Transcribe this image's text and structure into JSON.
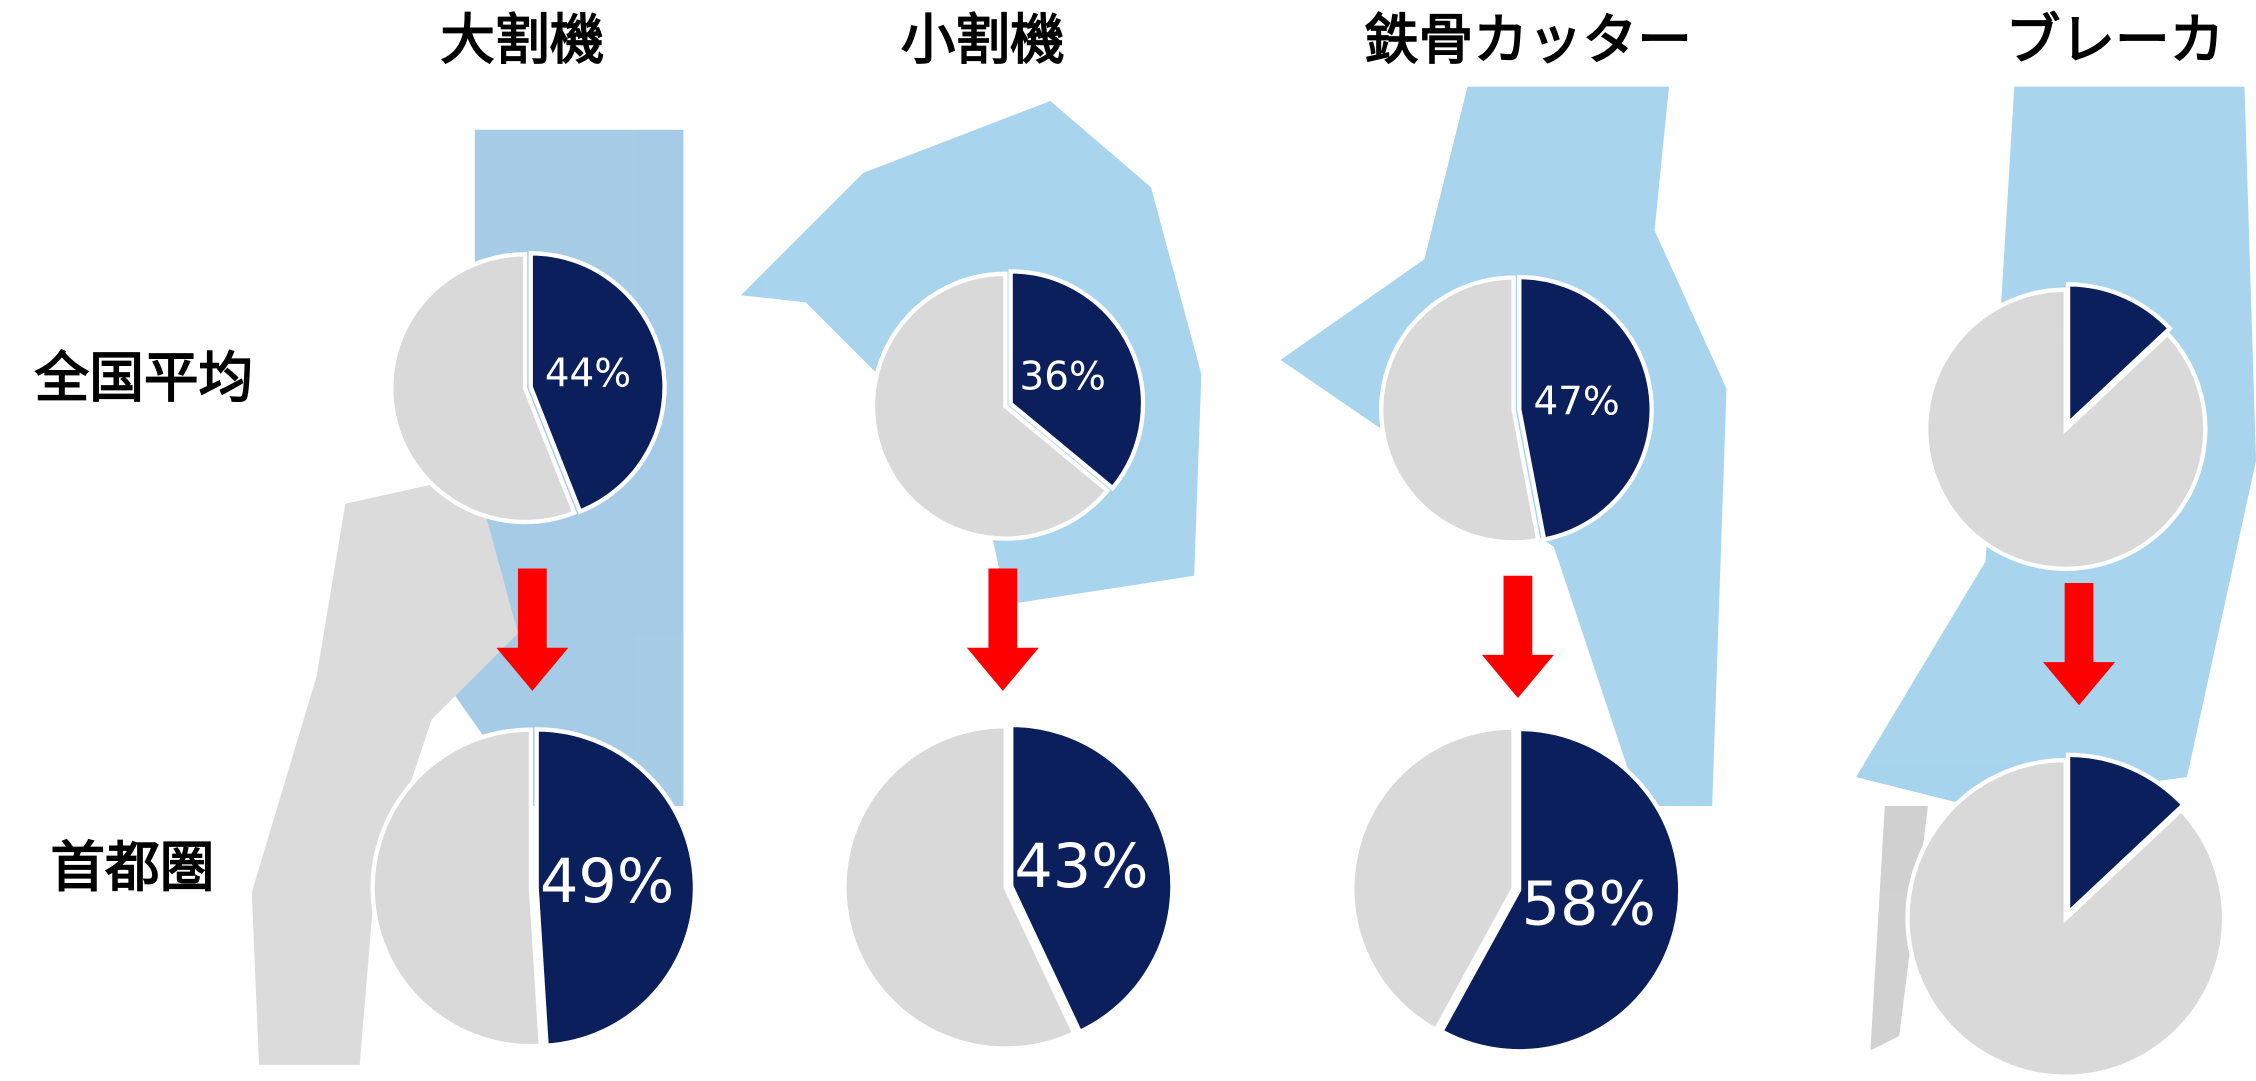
{
  "column_titles": [
    "大割機",
    "小割機",
    "鉄骨カッター",
    "ブレーカ"
  ],
  "row_labels": [
    "全国平均",
    "首都圏"
  ],
  "chart_data": [
    {
      "type": "pie",
      "categories": [
        null,
        null
      ],
      "values": [
        44,
        56
      ],
      "value_labels": [
        "44%",
        null
      ],
      "colors": [
        "#0b1f5c",
        "#d9d9d9"
      ]
    },
    {
      "type": "pie",
      "categories": [
        null,
        null
      ],
      "values": [
        49,
        51
      ],
      "value_labels": [
        "49%",
        null
      ],
      "colors": [
        "#0b1f5c",
        "#d9d9d9"
      ]
    },
    {
      "type": "pie",
      "categories": [
        null,
        null
      ],
      "values": [
        36,
        64
      ],
      "value_labels": [
        "36%",
        null
      ],
      "colors": [
        "#0b1f5c",
        "#d9d9d9"
      ]
    },
    {
      "type": "pie",
      "categories": [
        null,
        null
      ],
      "values": [
        43,
        57
      ],
      "value_labels": [
        "43%",
        null
      ],
      "colors": [
        "#0b1f5c",
        "#d9d9d9"
      ]
    },
    {
      "type": "pie",
      "categories": [
        null,
        null
      ],
      "values": [
        47,
        53
      ],
      "value_labels": [
        "47%",
        null
      ],
      "colors": [
        "#0b1f5c",
        "#d9d9d9"
      ]
    },
    {
      "type": "pie",
      "categories": [
        null,
        null
      ],
      "values": [
        58,
        42
      ],
      "value_labels": [
        "58%",
        null
      ],
      "colors": [
        "#0b1f5c",
        "#d9d9d9"
      ]
    },
    {
      "type": "pie",
      "categories": [
        null,
        null
      ],
      "values": [
        13,
        87
      ],
      "value_labels": [
        "13%",
        null
      ],
      "colors": [
        "#0b1f5c",
        "#d9d9d9"
      ]
    },
    {
      "type": "pie",
      "categories": [
        null,
        null
      ],
      "values": [
        13,
        87
      ],
      "value_labels": [
        "13%",
        null
      ],
      "colors": [
        "#0b1f5c",
        "#d9d9d9"
      ]
    }
  ]
}
